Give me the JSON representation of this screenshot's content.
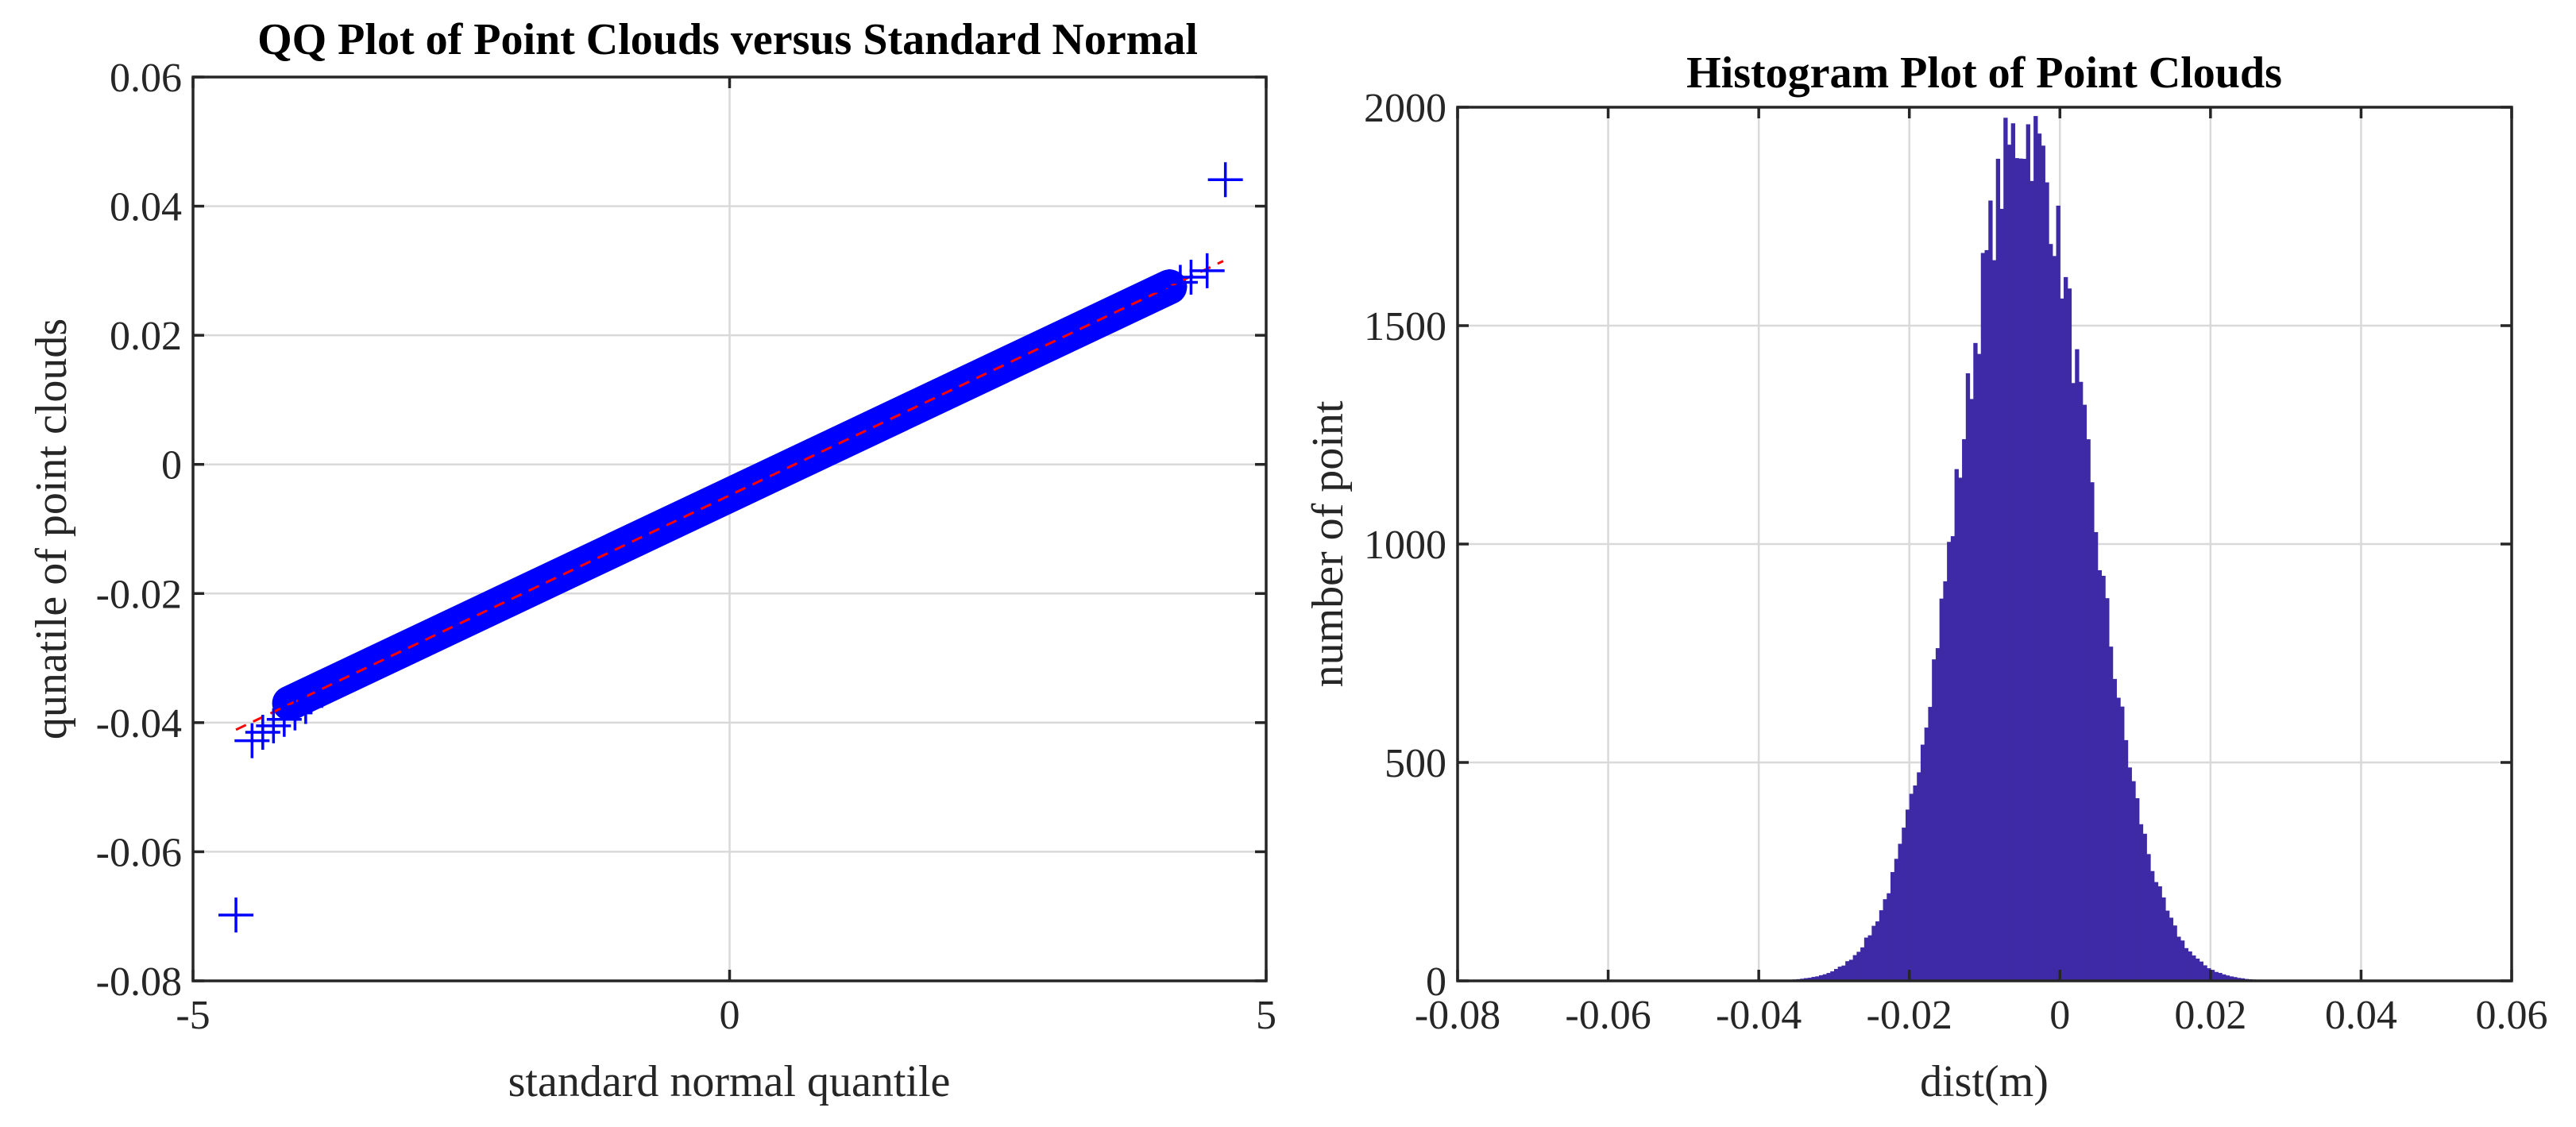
{
  "chart_data": [
    {
      "type": "scatter",
      "title": "QQ Plot of Point Clouds versus Standard Normal",
      "xlabel": "standard normal quantile",
      "ylabel": "qunatile of point clouds",
      "xlim": [
        -5,
        5
      ],
      "ylim": [
        -0.08,
        0.06
      ],
      "xticks": [
        -5,
        0,
        5
      ],
      "xtick_labels": [
        "-5",
        "0",
        "5"
      ],
      "yticks": [
        -0.08,
        -0.06,
        -0.04,
        -0.02,
        0,
        0.02,
        0.04,
        0.06
      ],
      "ytick_labels": [
        "-0.08",
        "-0.06",
        "-0.04",
        "-0.02",
        "0",
        "0.02",
        "0.04",
        "0.06"
      ],
      "grid": true,
      "marker": "+",
      "marker_color": "#0000ff",
      "reference_line_color": "#ff0000",
      "reference_line": {
        "x": [
          -4.6,
          4.6
        ],
        "y": [
          -0.0411,
          0.0315
        ]
      },
      "body": {
        "x": [
          -4.1,
          4.1
        ],
        "y": [
          -0.037,
          0.0275
        ]
      },
      "tail_points": [
        {
          "x": -4.6,
          "y": -0.0698
        },
        {
          "x": -4.45,
          "y": -0.0428
        },
        {
          "x": -4.35,
          "y": -0.0415
        },
        {
          "x": -4.25,
          "y": -0.0405
        },
        {
          "x": -4.15,
          "y": -0.0395
        },
        {
          "x": -4.05,
          "y": -0.0385
        },
        {
          "x": -3.95,
          "y": -0.0375
        },
        {
          "x": 4.0,
          "y": 0.0268
        },
        {
          "x": 4.1,
          "y": 0.0275
        },
        {
          "x": 4.2,
          "y": 0.0282
        },
        {
          "x": 4.3,
          "y": 0.029
        },
        {
          "x": 4.45,
          "y": 0.03
        },
        {
          "x": 4.62,
          "y": 0.0441
        }
      ]
    },
    {
      "type": "bar",
      "title": "Histogram Plot of Point Clouds",
      "xlabel": "dist(m)",
      "ylabel": "number of point",
      "xlim": [
        -0.08,
        0.06
      ],
      "ylim": [
        0,
        2000
      ],
      "xticks": [
        -0.08,
        -0.06,
        -0.04,
        -0.02,
        0,
        0.02,
        0.04,
        0.06
      ],
      "xtick_labels": [
        "-0.08",
        "-0.06",
        "-0.04",
        "-0.02",
        "0",
        "0.02",
        "0.04",
        "0.06"
      ],
      "yticks": [
        0,
        500,
        1000,
        1500,
        2000
      ],
      "ytick_labels": [
        "0",
        "500",
        "1000",
        "1500",
        "2000"
      ],
      "grid": true,
      "bar_color": "#3f2aa6",
      "distribution": {
        "mean": -0.0048,
        "std": 0.0085,
        "peak_count": 1950
      },
      "bin_range": [
        -0.07,
        0.045
      ],
      "bin_width": 0.0005
    }
  ]
}
